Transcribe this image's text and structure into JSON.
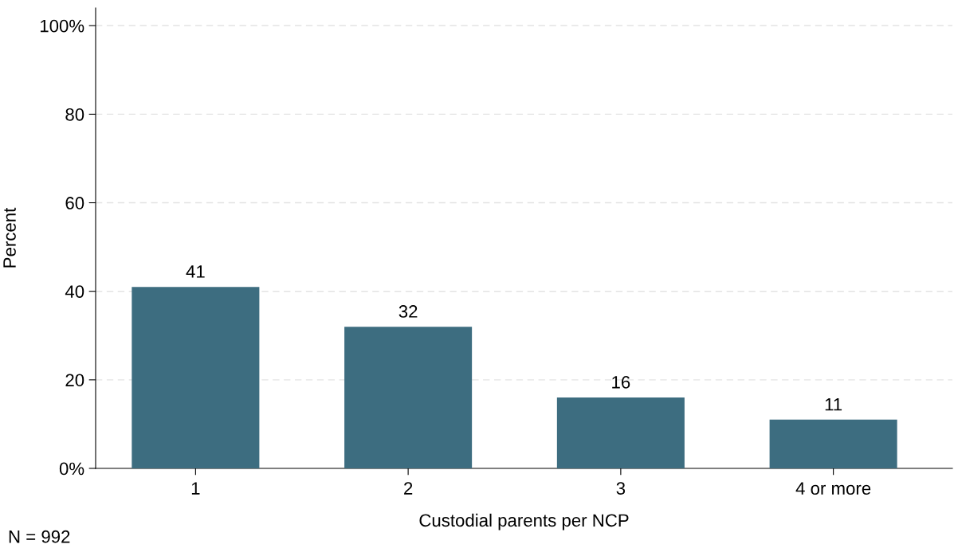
{
  "chart_data": {
    "type": "bar",
    "xlabel": "Custodial parents per NCP",
    "ylabel": "Percent",
    "categories": [
      "1",
      "2",
      "3",
      "4 or more"
    ],
    "values": [
      41,
      32,
      16,
      11
    ],
    "color": "#3d6d80",
    "data_labels": true,
    "ylim": [
      0,
      104
    ],
    "yticks": [
      {
        "value": 0,
        "label": "0%"
      },
      20,
      40,
      60,
      80,
      {
        "value": 100,
        "label": "100%"
      }
    ],
    "grid": "y",
    "annotations": [
      "N = 992"
    ]
  }
}
